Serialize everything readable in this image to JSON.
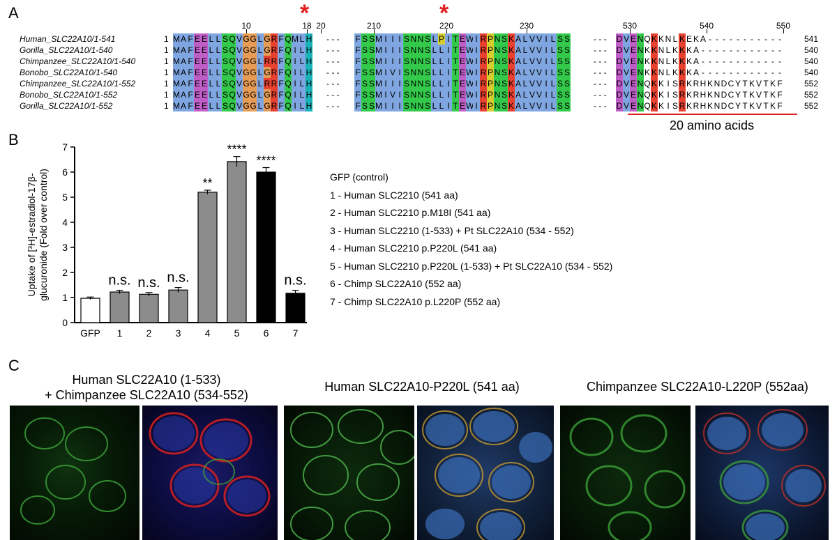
{
  "panel_a": {
    "letter": "A",
    "positions": [
      "10",
      "18",
      "20",
      "210",
      "220",
      "230",
      "530",
      "540",
      "550"
    ],
    "rows": [
      {
        "label": "Human_SLC22A10/1-541",
        "start": "1",
        "end": "541",
        "seg1": "MAFEELLSQVGGLGRFQMLH",
        "seg2": "FSSMIIISNNSLPITEWIRPNSKALVVILSS",
        "seg3": "DVENQKKNLKEKA-----------"
      },
      {
        "label": "Gorilla_SLC22A10/1-540",
        "start": "1",
        "end": "540",
        "seg1": "MAFEELLSQVGGLGRFQILH",
        "seg2": "FSSMIIISNNSLLITEWIRPNSKALVVILSS",
        "seg3": "DVENKKNLKKKA------------"
      },
      {
        "label": "Chimpanzee_SLC22A10/1-540",
        "start": "1",
        "end": "540",
        "seg1": "MAFEELLSQVGGLRRFQILH",
        "seg2": "FSSMIIISNNSLLITEWIRPNSKALVVILSS",
        "seg3": "DVENKKNLKKKA------------"
      },
      {
        "label": "Bonobo_SLC22A10/1-540",
        "start": "1",
        "end": "540",
        "seg1": "MAFEELLSQVGGLGRFQILH",
        "seg2": "FSSMIVISNNSLLITEWIRPNSKALVVILSS",
        "seg3": "DVENKKNLKKKA------------"
      },
      {
        "label": "Chimpanzee_SLC22A10/1-552",
        "start": "1",
        "end": "552",
        "seg1": "MAFEELLSQVGGLRRFQILH",
        "seg2": "FSSMIIISNNSLLITEWIRPNSKALVVILSS",
        "seg3": "DVENQKKISRKRHKNDCYTKVTKF"
      },
      {
        "label": "Bonobo_SLC22A10/1-552",
        "start": "1",
        "end": "552",
        "seg1": "MAFEELLSQVGGLGRFQILH",
        "seg2": "FSSMIVISNNSLLITEWIRPNSKALVVILSS",
        "seg3": "DVENQKKISRKRHKNDCYTKVTKF"
      },
      {
        "label": "Gorilla_SLC22A10/1-552",
        "start": "1",
        "end": "552",
        "seg1": "MAFEELLSQVGGLGRFQILH",
        "seg2": "FSSMIIISNNSLLITEWIRPNSKALVVILSS",
        "seg3": "DVENQKKISRKRHKNDCYTKVTKF"
      }
    ],
    "gap": "- - -",
    "bracket_label": "20 amino acids",
    "colors": {
      "blue": "#7fa6e0",
      "magenta": "#c05ec8",
      "green": "#33c94a",
      "orange": "#e69c55",
      "red": "#e8412f",
      "teal": "#19b2b8",
      "yellow": "#d6cd2e",
      "marker": "#e21f1f"
    }
  },
  "panel_b": {
    "letter": "B",
    "chart_data": {
      "type": "bar",
      "categories": [
        "GFP",
        "1",
        "2",
        "3",
        "4",
        "5",
        "6",
        "7"
      ],
      "values": [
        0.97,
        1.22,
        1.13,
        1.3,
        5.2,
        6.42,
        6.0,
        1.17
      ],
      "errors": [
        0.05,
        0.07,
        0.07,
        0.1,
        0.08,
        0.2,
        0.18,
        0.12
      ],
      "bar_colors": [
        "#ffffff",
        "#8c8c8c",
        "#8c8c8c",
        "#8c8c8c",
        "#8c8c8c",
        "#8c8c8c",
        "#000000",
        "#000000"
      ],
      "significance": [
        "",
        "n.s.",
        "n.s.",
        "n.s.",
        "**",
        "****",
        "****",
        "n.s."
      ],
      "ylabel_line1": "Uptake of [³H]-estradiol-17β-",
      "ylabel_line2": "glucuronide (Fold over control)",
      "yticks": [
        "0",
        "1",
        "2",
        "3",
        "4",
        "5",
        "6",
        "7"
      ],
      "ylim": [
        0,
        7
      ]
    },
    "legend": [
      "GFP (control)",
      "1 - Human SLC2210 (541 aa)",
      "2 - Human SLC2210 p.M18I (541 aa)",
      "3 - Human SLC2210 (1-533) + Pt SLC22A10 (534 - 552)",
      "4 - Human SLC2210 p.P220L (541 aa)",
      "5 - Human SLC2210 p.P220L (1-533) + Pt SLC22A10 (534 - 552)",
      "6 - Chimp SLC22A10 (552 aa)",
      "7 - Chimp SLC22A10 p.L220P (552 aa)"
    ]
  },
  "panel_c": {
    "letter": "C",
    "titles": [
      {
        "line1": "Human SLC22A10 (1-533)",
        "line2": "+ Chimpanzee SLC22A10 (534-552)"
      },
      {
        "line1": "Human SLC22A10-P220L (541 aa)",
        "line2": ""
      },
      {
        "line1": "Chimpanzee SLC22A10-L220P (552aa)",
        "line2": ""
      }
    ]
  }
}
